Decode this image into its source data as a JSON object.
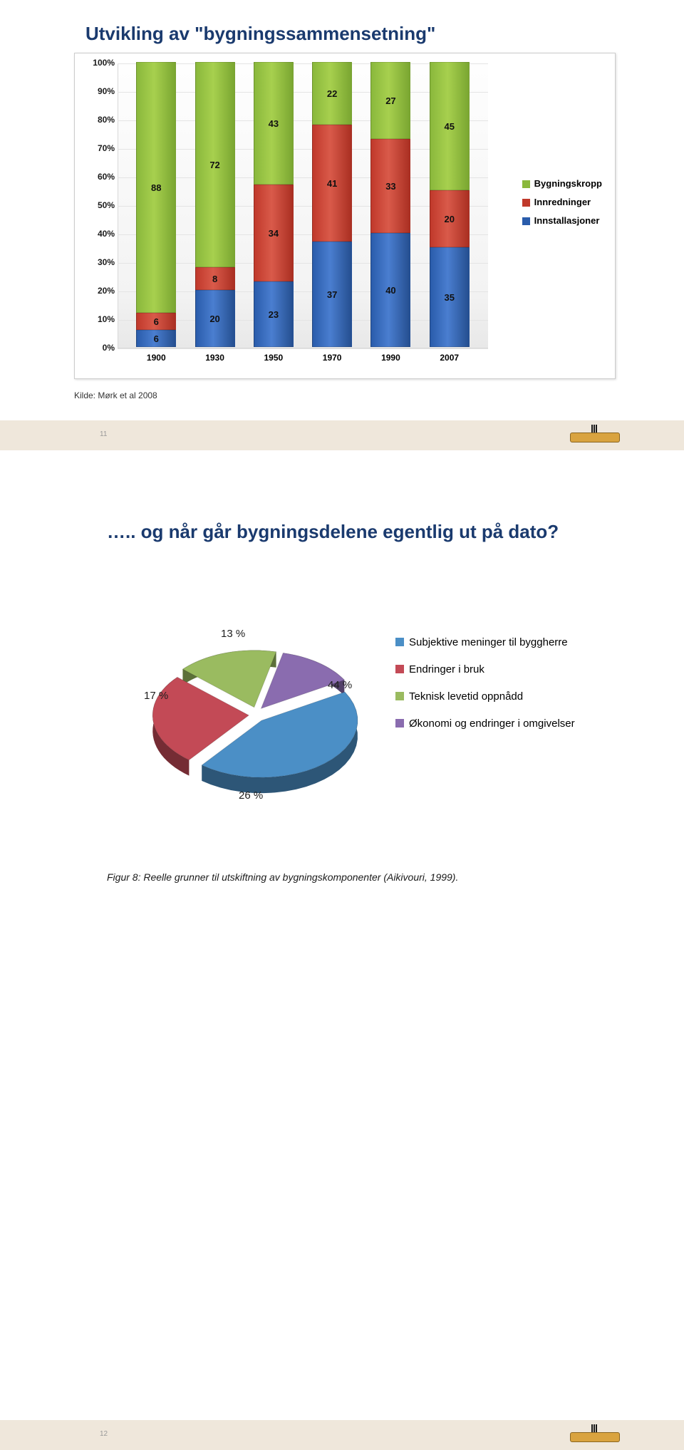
{
  "slide1": {
    "title": "Utvikling av \"bygningssammensetning\"",
    "source": "Kilde: Mørk et al 2008",
    "page_num": "11",
    "bar_chart": {
      "type": "stacked-bar-100",
      "ylabel_suffix": "%",
      "ylim": [
        0,
        100
      ],
      "ytick_step": 10,
      "categories": [
        "1900",
        "1930",
        "1950",
        "1970",
        "1990",
        "2007"
      ],
      "series_order_bottom_to_top": [
        "Innstallasjoner",
        "Innredninger",
        "Bygningskropp"
      ],
      "colors": {
        "Bygningskropp": "#8ab83c",
        "Innredninger": "#c0392b",
        "Innstallasjoner": "#2a5cab"
      },
      "data": {
        "1900": {
          "Innstallasjoner": 6,
          "Innredninger": 6,
          "Bygningskropp": 88
        },
        "1930": {
          "Innstallasjoner": 20,
          "Innredninger": 8,
          "Bygningskropp": 72
        },
        "1950": {
          "Innstallasjoner": 23,
          "Innredninger": 34,
          "Bygningskropp": 43
        },
        "1970": {
          "Innstallasjoner": 37,
          "Innredninger": 41,
          "Bygningskropp": 22
        },
        "1990": {
          "Innstallasjoner": 40,
          "Innredninger": 33,
          "Bygningskropp": 27
        },
        "2007": {
          "Innstallasjoner": 35,
          "Innredninger": 20,
          "Bygningskropp": 45
        }
      },
      "legend_labels": {
        "Bygningskropp": "Bygningskropp",
        "Innredninger": "Innredninger",
        "Innstallasjoner": "Innstallasjoner"
      },
      "background_color": "#ffffff",
      "grid_color": "#e4e4e4",
      "label_fontsize": 12,
      "value_label_fontsize": 13
    }
  },
  "slide2": {
    "title": "….. og når går bygningsdelene egentlig ut på dato?",
    "page_num": "12",
    "pie_chart": {
      "type": "pie-3d-exploded",
      "slices": [
        {
          "label": "Subjektive meninger til byggherre",
          "value": 44,
          "color": "#4b8fc6",
          "display_pct": "44 %"
        },
        {
          "label": "Endringer i bruk",
          "value": 26,
          "color": "#c34a56",
          "display_pct": "26 %"
        },
        {
          "label": "Teknisk levetid oppnådd",
          "value": 17,
          "color": "#9abb60",
          "display_pct": "17 %"
        },
        {
          "label": "Økonomi og endringer i omgivelser",
          "value": 13,
          "color": "#8a6caf",
          "display_pct": "13 %"
        }
      ],
      "label_fontsize": 15,
      "background_color": "#ffffff"
    },
    "caption": "Figur 8: Reelle grunner til utskiftning av bygningskomponenter (Aikivouri, 1999)."
  }
}
